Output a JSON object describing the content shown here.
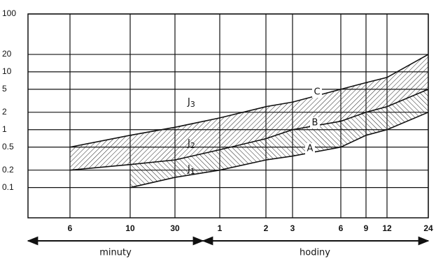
{
  "chart_data": {
    "type": "band",
    "categories": [
      "6",
      "10",
      "30",
      "1",
      "2",
      "3",
      "6",
      "9",
      "12",
      "24"
    ],
    "ylim": [
      0.03,
      100
    ],
    "log_y": true,
    "yticks": [
      0.1,
      0.2,
      0.5,
      1,
      2,
      5,
      10,
      20,
      100
    ],
    "grid": true,
    "series": [
      {
        "name": "C",
        "color": "#111111",
        "values": [
          0.5,
          0.8,
          1.1,
          1.6,
          2.5,
          3,
          5,
          6.5,
          8,
          20
        ]
      },
      {
        "name": "B",
        "color": "#111111",
        "values": [
          0.2,
          0.25,
          0.3,
          0.45,
          0.7,
          1,
          1.4,
          2,
          2.5,
          5
        ]
      },
      {
        "name": "A",
        "color": "#111111",
        "values": [
          null,
          0.1,
          0.15,
          0.2,
          0.3,
          0.35,
          0.5,
          0.8,
          1,
          2
        ]
      }
    ],
    "annotations": [
      {
        "text": "J",
        "sub": "3"
      },
      {
        "text": "J",
        "sub": "2"
      },
      {
        "text": "J",
        "sub": "1"
      }
    ],
    "ranges": [
      "minuty",
      "hodiny"
    ]
  }
}
